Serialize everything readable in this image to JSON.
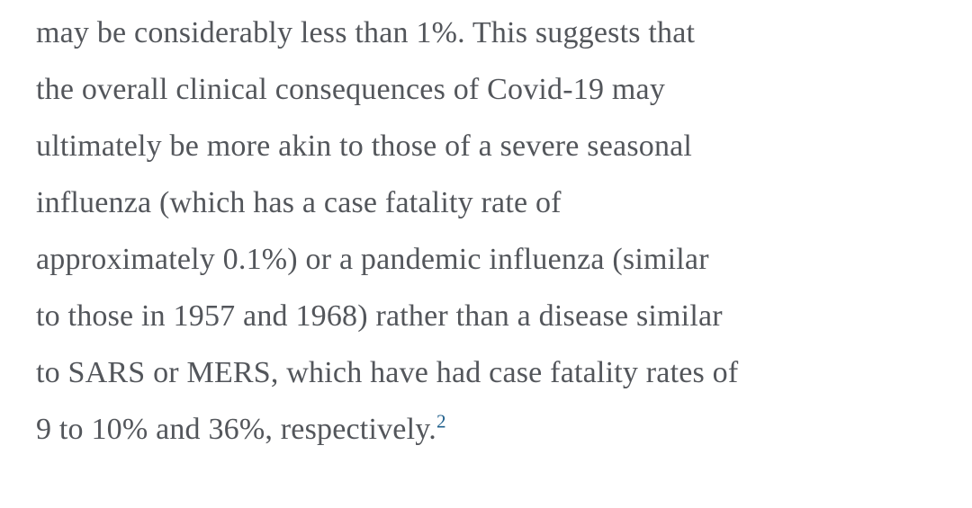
{
  "article": {
    "text_color": "#53565b",
    "link_color": "#20608c",
    "paragraph": {
      "lines": [
        "may be considerably less than 1%. This suggests that",
        "the overall clinical consequences of Covid-19 may",
        "ultimately be more akin to those of a severe seasonal",
        "influenza (which has a case fatality rate of",
        "approximately 0.1%) or a pandemic influenza (similar",
        "to those in 1957 and 1968) rather than a disease similar",
        "to SARS or MERS, which have had case fatality rates of",
        "9 to 10% and 36%, respectively."
      ],
      "reference_marker": "2"
    }
  }
}
